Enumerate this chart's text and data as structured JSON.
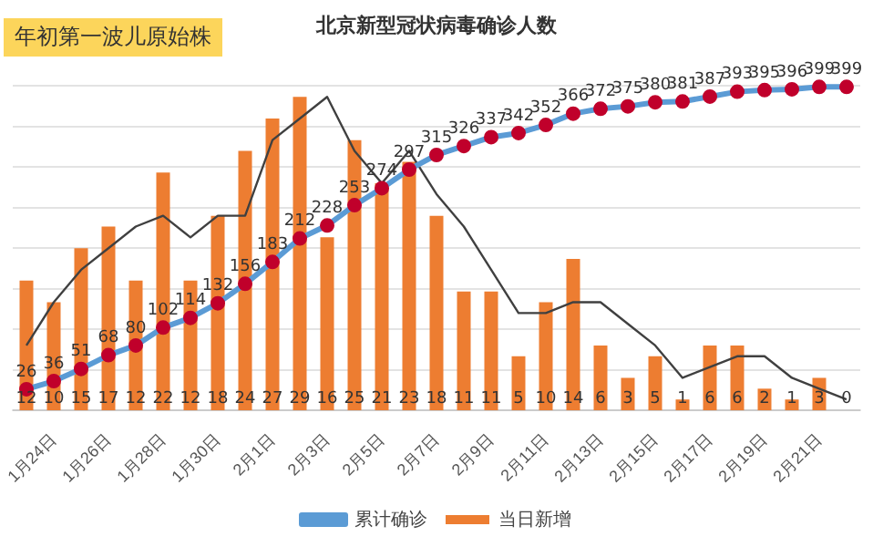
{
  "chart_data": {
    "type": "bar",
    "title": "北京新型冠状病毒确诊人数",
    "categories": [
      null,
      "1月24日",
      null,
      "1月26日",
      null,
      "1月28日",
      null,
      "1月30日",
      null,
      "2月1日",
      null,
      "2月3日",
      null,
      "2月5日",
      null,
      "2月7日",
      null,
      "2月9日",
      null,
      "2月11日",
      null,
      "2月13日",
      null,
      "2月15日",
      null,
      "2月17日",
      null,
      "2月19日",
      null,
      "2月21日",
      null
    ],
    "series": [
      {
        "name": "当日新增",
        "color": "#ed7d31",
        "values": [
          12,
          10,
          15,
          17,
          12,
          22,
          12,
          18,
          24,
          27,
          29,
          16,
          25,
          21,
          23,
          18,
          11,
          11,
          5,
          10,
          14,
          6,
          3,
          5,
          1,
          6,
          6,
          2,
          1,
          3,
          0
        ],
        "value_labels": [
          "12",
          "10",
          "15",
          "17",
          "12",
          "22",
          "12",
          "18",
          "24",
          "27",
          "29",
          "16",
          "25",
          "21",
          "23",
          "18",
          "11",
          "11",
          "5",
          "10",
          "14",
          "6",
          "3",
          "5",
          "1",
          "6",
          "6",
          "2",
          "1",
          "3",
          "0"
        ]
      },
      {
        "name": "累计确诊",
        "type": "line",
        "axis": "y2",
        "color": "#5b9bd5",
        "marker": "circle",
        "values": [
          26,
          36,
          51,
          68,
          80,
          102,
          114,
          132,
          156,
          183,
          212,
          228,
          253,
          274,
          297,
          315,
          326,
          337,
          342,
          352,
          366,
          372,
          375,
          380,
          381,
          387,
          393,
          395,
          396,
          399,
          399
        ],
        "value_labels": [
          "26",
          "36",
          "51",
          "68",
          "80",
          "102",
          "114",
          "132",
          "156",
          "183",
          "212",
          "228",
          "253",
          "274",
          "297",
          "315",
          "326",
          "337",
          "342",
          "352",
          "366",
          "372",
          "375",
          "380",
          "381",
          "387",
          "393",
          "395",
          "396",
          "399",
          "399"
        ]
      },
      {
        "type": "line",
        "color": "#404040",
        "marker": "none",
        "values": [
          6,
          10,
          13,
          15,
          17,
          18,
          16,
          18,
          18,
          25,
          27,
          29,
          24,
          21,
          24,
          20,
          17,
          13,
          9,
          9,
          10,
          10,
          8,
          6,
          3,
          4,
          5,
          5,
          3,
          2,
          1
        ]
      }
    ],
    "grid": "y",
    "tick_labels": "x",
    "legend": "bottom",
    "annotations": [
      "年初第一波儿原始株"
    ]
  }
}
